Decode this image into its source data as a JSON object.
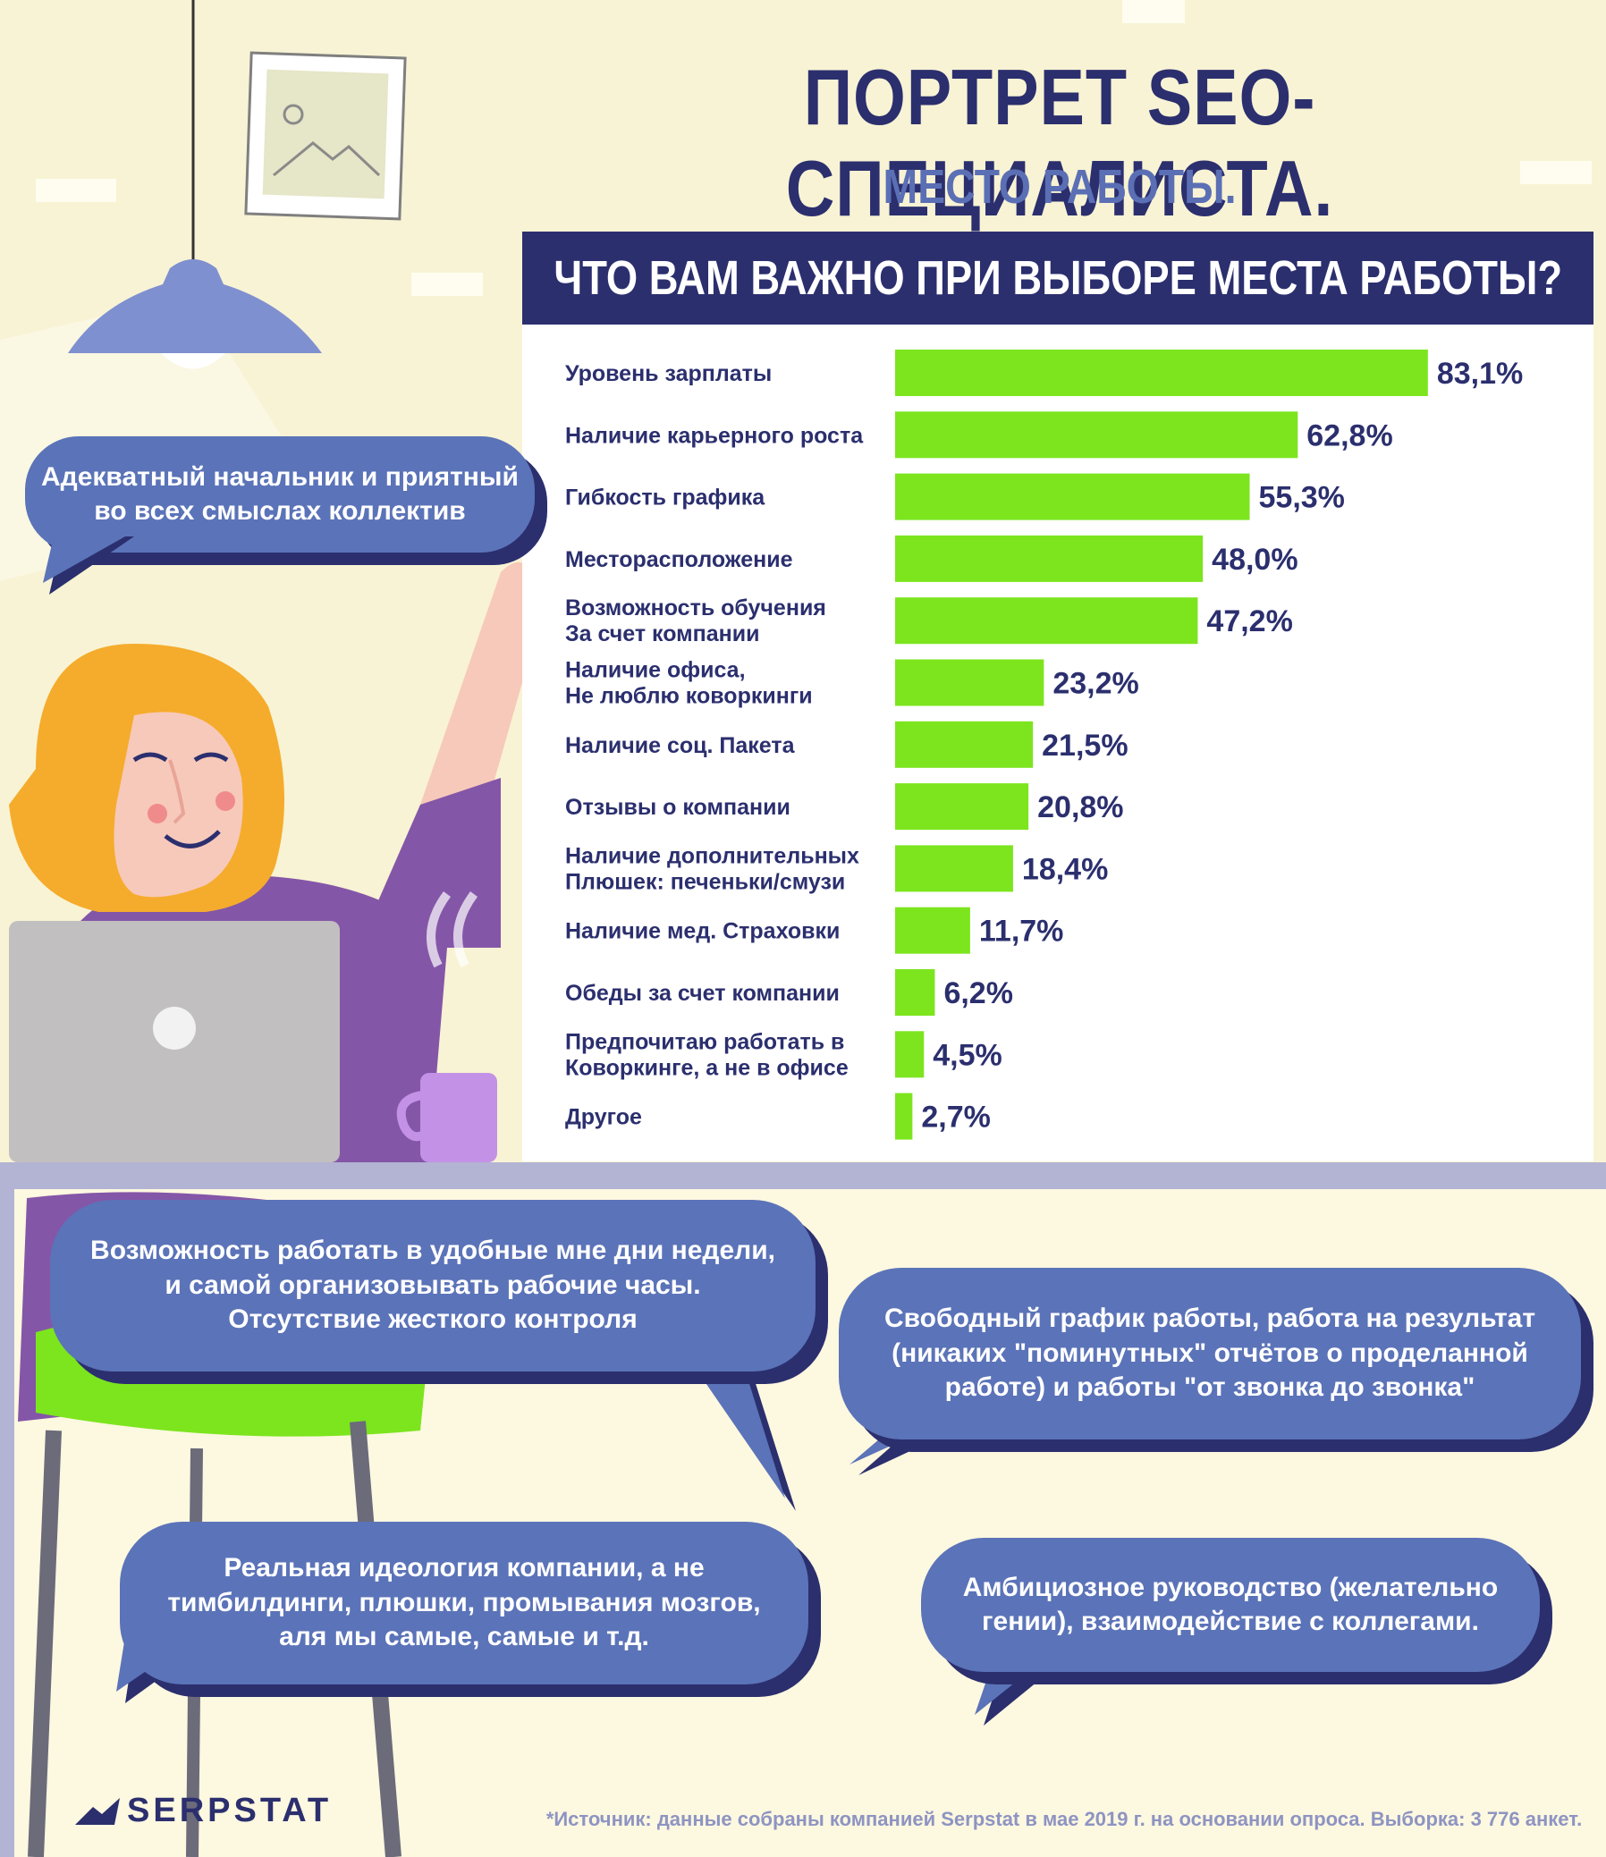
{
  "header": {
    "title": "ПОРТРЕТ SEO-СПЕЦИАЛИСТА.",
    "subtitle": "МЕСТО РАБОТЫ."
  },
  "colors": {
    "background": "#f8f3d4",
    "navy": "#2b2f6e",
    "bubble": "#5b73b8",
    "bar": "#7ce51e"
  },
  "chart_data": {
    "type": "bar",
    "orientation": "horizontal",
    "title": "ЧТО ВАМ ВАЖНО ПРИ ВЫБОРЕ МЕСТА РАБОТЫ?",
    "categories": [
      "Уровень зарплаты",
      "Наличие карьерного роста",
      "Гибкость графика",
      "Месторасположение",
      "Возможность обучения\nЗа счет компании",
      "Наличие офиса,\nНе люблю коворкинги",
      "Наличие соц. Пакета",
      "Отзывы о компании",
      "Наличие дополнительных\nПлюшек: печеньки/смузи",
      "Наличие мед. Страховки",
      "Обеды за счет компании",
      "Предпочитаю работать в\nКоворкинге, а не в офисе",
      "Другое"
    ],
    "values": [
      83.1,
      62.8,
      55.3,
      48.0,
      47.2,
      23.2,
      21.5,
      20.8,
      18.4,
      11.7,
      6.2,
      4.5,
      2.7
    ],
    "value_labels": [
      "83,1%",
      "62,8%",
      "55,3%",
      "48,0%",
      "47,2%",
      "23,2%",
      "21,5%",
      "20,8%",
      "18,4%",
      "11,7%",
      "6,2%",
      "4,5%",
      "2,7%"
    ],
    "xlim": [
      0,
      100
    ],
    "grid": false,
    "legend": "none"
  },
  "quotes": {
    "q1": "Адекватный начальник и приятный\nво всех смыслах коллектив",
    "q2": "Возможность работать в удобные мне дни недели,\nи самой организовывать рабочие часы.\nОтсутствие жесткого контроля",
    "q3": "Свободный график работы, работа на результат\n(никаких \"поминутных\" отчётов о проделанной\nработе) и работы \"от звонка до звонка\"",
    "q4": "Реальная идеология компании, а не\nтимбилдинги, плюшки, промывания мозгов,\nаля мы самые, самые и т.д.",
    "q5": "Амбициозное руководство (желательно\nгении), взаимодействие с коллегами."
  },
  "footer": {
    "source": "*Источник: данные собраны компанией Serpstat в мае 2019 г. на основании опроса. Выборка: 3 776 анкет.",
    "logo": "SERPSTAT"
  }
}
